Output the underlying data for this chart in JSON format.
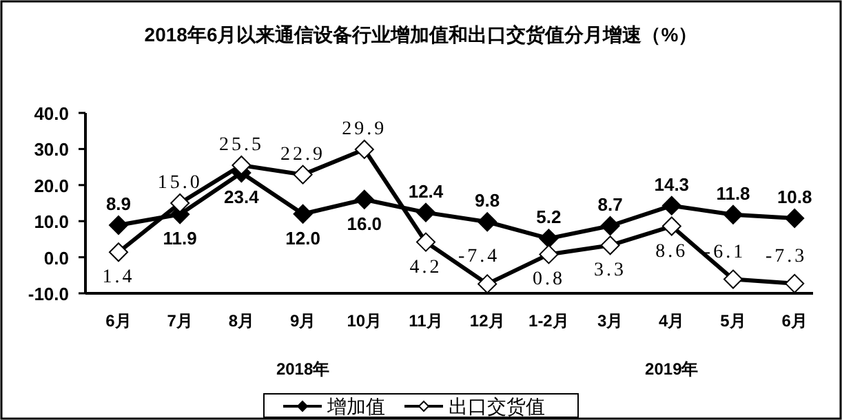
{
  "chart_data": {
    "type": "line",
    "title": "2018年6月以来通信设备行业增加值和出口交货值分月增速（%）",
    "categories": [
      "6月",
      "7月",
      "8月",
      "9月",
      "10月",
      "11月",
      "12月",
      "1-2月",
      "3月",
      "4月",
      "5月",
      "6月"
    ],
    "series": [
      {
        "name": "增加值",
        "color": "#000000",
        "values": [
          8.9,
          11.9,
          23.4,
          12.0,
          16.0,
          12.4,
          9.8,
          5.2,
          8.7,
          14.3,
          11.8,
          10.8
        ],
        "value_labels": [
          "8.9",
          "11.9",
          "23.4",
          "12.0",
          "16.0",
          "12.4",
          "9.8",
          "5.2",
          "8.7",
          "14.3",
          "11.8",
          "10.8"
        ]
      },
      {
        "name": "出口交货值",
        "color": "#000000",
        "values": [
          1.4,
          15.0,
          25.5,
          22.9,
          29.9,
          4.2,
          -7.4,
          0.8,
          3.3,
          8.6,
          -6.1,
          -7.3
        ],
        "value_labels": [
          "1.4",
          "15.0",
          "25.5",
          "22.9",
          "29.9",
          "4.2",
          "-7.4",
          "0.8",
          "3.3",
          "8.6",
          "-6.1",
          "-7.3"
        ]
      }
    ],
    "ylim": [
      -10,
      40
    ],
    "yticks": [
      {
        "value": -10,
        "label": "-10.0"
      },
      {
        "value": 0,
        "label": "0.0"
      },
      {
        "value": 10,
        "label": "10.0"
      },
      {
        "value": 20,
        "label": "20.0"
      },
      {
        "value": 30,
        "label": "30.0"
      },
      {
        "value": 40,
        "label": "40.0"
      }
    ],
    "marker": "diamond",
    "legend": "bottom",
    "annotations": [
      "2018年",
      "2019年"
    ]
  }
}
